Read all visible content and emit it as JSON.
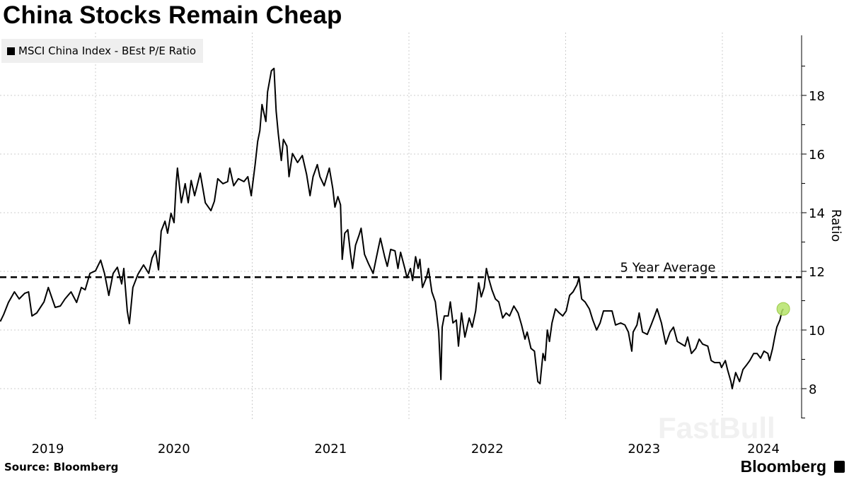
{
  "title": "China Stocks Remain Cheap",
  "source": "Source: Bloomberg",
  "brand": "Bloomberg",
  "watermark": "FastBull",
  "colors": {
    "line": "#000000",
    "marker": "#b5e36a",
    "grid": "#cccccc",
    "legend_bg": "#efefef"
  },
  "chart_data": {
    "type": "line",
    "xlabel": "",
    "ylabel": "Ratio",
    "y_axis_position": "right",
    "ylim": [
      7,
      20
    ],
    "y_ticks": [
      8,
      10,
      12,
      14,
      16,
      18
    ],
    "x_ticks": [
      "2019",
      "2020",
      "2021",
      "2022",
      "2023",
      "2024"
    ],
    "grid": true,
    "legend": {
      "placement": "top-left",
      "entries": [
        "MSCI China Index - BEst P/E Ratio"
      ]
    },
    "reference_line": {
      "label": "5 Year Average",
      "value": 11.8,
      "style": "dashed"
    },
    "highlight_last_point": true,
    "series": [
      {
        "name": "MSCI China Index - BEst P/E Ratio",
        "points": [
          [
            "2019-05-24",
            10.29
          ],
          [
            "2019-06-01",
            10.53
          ],
          [
            "2019-06-12",
            10.94
          ],
          [
            "2019-06-26",
            11.3
          ],
          [
            "2019-07-07",
            11.06
          ],
          [
            "2019-07-20",
            11.25
          ],
          [
            "2019-07-29",
            11.3
          ],
          [
            "2019-08-06",
            10.48
          ],
          [
            "2019-08-17",
            10.58
          ],
          [
            "2019-09-03",
            10.96
          ],
          [
            "2019-09-13",
            11.45
          ],
          [
            "2019-09-29",
            10.77
          ],
          [
            "2019-10-11",
            10.82
          ],
          [
            "2019-10-22",
            11.06
          ],
          [
            "2019-11-05",
            11.3
          ],
          [
            "2019-11-18",
            10.94
          ],
          [
            "2019-11-29",
            11.45
          ],
          [
            "2019-12-08",
            11.37
          ],
          [
            "2019-12-19",
            11.93
          ],
          [
            "2020-01-01",
            12.02
          ],
          [
            "2020-01-13",
            12.38
          ],
          [
            "2020-01-22",
            11.93
          ],
          [
            "2020-02-01",
            11.18
          ],
          [
            "2020-02-11",
            11.93
          ],
          [
            "2020-02-21",
            12.14
          ],
          [
            "2020-03-02",
            11.57
          ],
          [
            "2020-03-07",
            12.1
          ],
          [
            "2020-03-15",
            10.65
          ],
          [
            "2020-03-20",
            10.22
          ],
          [
            "2020-03-28",
            11.45
          ],
          [
            "2020-04-09",
            11.9
          ],
          [
            "2020-04-22",
            12.22
          ],
          [
            "2020-05-04",
            11.93
          ],
          [
            "2020-05-12",
            12.46
          ],
          [
            "2020-05-20",
            12.7
          ],
          [
            "2020-05-27",
            12.05
          ],
          [
            "2020-06-02",
            13.37
          ],
          [
            "2020-06-11",
            13.71
          ],
          [
            "2020-06-17",
            13.3
          ],
          [
            "2020-06-25",
            13.98
          ],
          [
            "2020-07-02",
            13.66
          ],
          [
            "2020-07-07",
            14.99
          ],
          [
            "2020-07-10",
            15.52
          ],
          [
            "2020-07-19",
            14.34
          ],
          [
            "2020-07-28",
            14.99
          ],
          [
            "2020-08-04",
            14.34
          ],
          [
            "2020-08-11",
            15.1
          ],
          [
            "2020-08-19",
            14.58
          ],
          [
            "2020-09-01",
            15.35
          ],
          [
            "2020-09-13",
            14.34
          ],
          [
            "2020-09-26",
            14.07
          ],
          [
            "2020-10-04",
            14.39
          ],
          [
            "2020-10-12",
            15.16
          ],
          [
            "2020-10-24",
            14.99
          ],
          [
            "2020-11-04",
            15.06
          ],
          [
            "2020-11-09",
            15.52
          ],
          [
            "2020-11-18",
            14.92
          ],
          [
            "2020-11-29",
            15.16
          ],
          [
            "2020-12-12",
            15.06
          ],
          [
            "2020-12-21",
            15.23
          ],
          [
            "2020-12-29",
            14.58
          ],
          [
            "2021-01-07",
            15.64
          ],
          [
            "2021-01-13",
            16.43
          ],
          [
            "2021-01-18",
            16.8
          ],
          [
            "2021-01-23",
            17.69
          ],
          [
            "2021-02-01",
            17.11
          ],
          [
            "2021-02-05",
            18.12
          ],
          [
            "2021-02-14",
            18.84
          ],
          [
            "2021-02-20",
            18.92
          ],
          [
            "2021-02-25",
            17.47
          ],
          [
            "2021-03-02",
            16.7
          ],
          [
            "2021-03-09",
            15.78
          ],
          [
            "2021-03-14",
            16.5
          ],
          [
            "2021-03-22",
            16.27
          ],
          [
            "2021-03-27",
            15.23
          ],
          [
            "2021-04-04",
            16.02
          ],
          [
            "2021-04-16",
            15.71
          ],
          [
            "2021-04-27",
            15.95
          ],
          [
            "2021-05-07",
            15.3
          ],
          [
            "2021-05-15",
            14.58
          ],
          [
            "2021-05-22",
            15.23
          ],
          [
            "2021-06-01",
            15.64
          ],
          [
            "2021-06-07",
            15.23
          ],
          [
            "2021-06-17",
            14.92
          ],
          [
            "2021-06-29",
            15.52
          ],
          [
            "2021-07-07",
            14.82
          ],
          [
            "2021-07-12",
            14.19
          ],
          [
            "2021-07-19",
            14.55
          ],
          [
            "2021-07-25",
            14.27
          ],
          [
            "2021-07-29",
            12.41
          ],
          [
            "2021-08-04",
            13.3
          ],
          [
            "2021-08-11",
            13.42
          ],
          [
            "2021-08-17",
            12.65
          ],
          [
            "2021-08-22",
            12.1
          ],
          [
            "2021-08-29",
            12.89
          ],
          [
            "2021-09-06",
            13.23
          ],
          [
            "2021-09-11",
            13.47
          ],
          [
            "2021-09-19",
            12.58
          ],
          [
            "2021-09-28",
            12.27
          ],
          [
            "2021-10-09",
            11.93
          ],
          [
            "2021-10-17",
            12.5
          ],
          [
            "2021-10-26",
            13.13
          ],
          [
            "2021-11-05",
            12.5
          ],
          [
            "2021-11-11",
            12.17
          ],
          [
            "2021-11-19",
            12.75
          ],
          [
            "2021-11-29",
            12.7
          ],
          [
            "2021-12-06",
            12.1
          ],
          [
            "2021-12-12",
            12.65
          ],
          [
            "2021-12-22",
            12.1
          ],
          [
            "2021-12-27",
            11.78
          ],
          [
            "2022-01-04",
            12.1
          ],
          [
            "2022-01-09",
            11.69
          ],
          [
            "2022-01-16",
            12.5
          ],
          [
            "2022-01-22",
            12.1
          ],
          [
            "2022-01-26",
            12.41
          ],
          [
            "2022-02-01",
            11.45
          ],
          [
            "2022-02-10",
            11.78
          ],
          [
            "2022-02-15",
            12.1
          ],
          [
            "2022-02-23",
            11.3
          ],
          [
            "2022-03-03",
            10.96
          ],
          [
            "2022-03-11",
            9.93
          ],
          [
            "2022-03-16",
            8.31
          ],
          [
            "2022-03-19",
            10.1
          ],
          [
            "2022-03-24",
            10.48
          ],
          [
            "2022-04-02",
            10.48
          ],
          [
            "2022-04-07",
            10.96
          ],
          [
            "2022-04-13",
            10.24
          ],
          [
            "2022-04-21",
            10.34
          ],
          [
            "2022-04-26",
            9.45
          ],
          [
            "2022-05-03",
            10.58
          ],
          [
            "2022-05-11",
            9.76
          ],
          [
            "2022-05-21",
            10.41
          ],
          [
            "2022-05-28",
            10.1
          ],
          [
            "2022-06-05",
            10.65
          ],
          [
            "2022-06-12",
            11.61
          ],
          [
            "2022-06-18",
            11.13
          ],
          [
            "2022-06-25",
            11.45
          ],
          [
            "2022-06-30",
            12.1
          ],
          [
            "2022-07-05",
            11.78
          ],
          [
            "2022-07-13",
            11.37
          ],
          [
            "2022-07-21",
            11.06
          ],
          [
            "2022-07-29",
            10.96
          ],
          [
            "2022-08-07",
            10.41
          ],
          [
            "2022-08-15",
            10.58
          ],
          [
            "2022-08-23",
            10.48
          ],
          [
            "2022-09-02",
            10.82
          ],
          [
            "2022-09-12",
            10.58
          ],
          [
            "2022-09-20",
            10.17
          ],
          [
            "2022-09-28",
            9.69
          ],
          [
            "2022-10-03",
            9.93
          ],
          [
            "2022-10-12",
            9.37
          ],
          [
            "2022-10-20",
            9.28
          ],
          [
            "2022-10-28",
            8.24
          ],
          [
            "2022-11-02",
            8.17
          ],
          [
            "2022-11-09",
            9.2
          ],
          [
            "2022-11-14",
            8.96
          ],
          [
            "2022-11-19",
            10.0
          ],
          [
            "2022-11-24",
            9.61
          ],
          [
            "2022-11-30",
            10.24
          ],
          [
            "2022-12-08",
            10.72
          ],
          [
            "2022-12-17",
            10.58
          ],
          [
            "2022-12-25",
            10.48
          ],
          [
            "2023-01-02",
            10.65
          ],
          [
            "2023-01-10",
            11.18
          ],
          [
            "2023-01-18",
            11.3
          ],
          [
            "2023-01-27",
            11.54
          ],
          [
            "2023-02-01",
            11.78
          ],
          [
            "2023-02-07",
            11.06
          ],
          [
            "2023-02-15",
            10.96
          ],
          [
            "2023-02-25",
            10.72
          ],
          [
            "2023-03-05",
            10.34
          ],
          [
            "2023-03-14",
            10.0
          ],
          [
            "2023-03-22",
            10.24
          ],
          [
            "2023-03-30",
            10.65
          ],
          [
            "2023-04-07",
            10.65
          ],
          [
            "2023-04-19",
            10.65
          ],
          [
            "2023-04-27",
            10.17
          ],
          [
            "2023-05-09",
            10.24
          ],
          [
            "2023-05-19",
            10.17
          ],
          [
            "2023-05-27",
            9.93
          ],
          [
            "2023-06-04",
            9.28
          ],
          [
            "2023-06-07",
            9.93
          ],
          [
            "2023-06-16",
            10.17
          ],
          [
            "2023-06-21",
            10.58
          ],
          [
            "2023-06-29",
            9.93
          ],
          [
            "2023-07-10",
            9.85
          ],
          [
            "2023-07-19",
            10.17
          ],
          [
            "2023-07-27",
            10.48
          ],
          [
            "2023-08-02",
            10.72
          ],
          [
            "2023-08-12",
            10.24
          ],
          [
            "2023-08-22",
            9.52
          ],
          [
            "2023-09-01",
            9.93
          ],
          [
            "2023-09-09",
            10.1
          ],
          [
            "2023-09-18",
            9.61
          ],
          [
            "2023-09-28",
            9.52
          ],
          [
            "2023-10-06",
            9.45
          ],
          [
            "2023-10-12",
            9.76
          ],
          [
            "2023-10-21",
            9.2
          ],
          [
            "2023-10-31",
            9.37
          ],
          [
            "2023-11-08",
            9.69
          ],
          [
            "2023-11-16",
            9.52
          ],
          [
            "2023-11-28",
            9.45
          ],
          [
            "2023-12-06",
            8.96
          ],
          [
            "2023-12-14",
            8.89
          ],
          [
            "2023-12-26",
            8.89
          ],
          [
            "2023-12-30",
            8.72
          ],
          [
            "2024-01-08",
            8.96
          ],
          [
            "2024-01-13",
            8.65
          ],
          [
            "2024-01-21",
            8.24
          ],
          [
            "2024-01-24",
            8.0
          ],
          [
            "2024-02-01",
            8.55
          ],
          [
            "2024-02-10",
            8.24
          ],
          [
            "2024-02-18",
            8.65
          ],
          [
            "2024-02-26",
            8.8
          ],
          [
            "2024-03-05",
            8.96
          ],
          [
            "2024-03-14",
            9.2
          ],
          [
            "2024-03-22",
            9.2
          ],
          [
            "2024-03-30",
            9.04
          ],
          [
            "2024-04-07",
            9.28
          ],
          [
            "2024-04-16",
            9.2
          ],
          [
            "2024-04-20",
            8.96
          ],
          [
            "2024-04-27",
            9.37
          ],
          [
            "2024-05-02",
            9.76
          ],
          [
            "2024-05-07",
            10.1
          ],
          [
            "2024-05-14",
            10.34
          ],
          [
            "2024-05-19",
            10.65
          ],
          [
            "2024-05-22",
            10.72
          ]
        ]
      }
    ]
  }
}
